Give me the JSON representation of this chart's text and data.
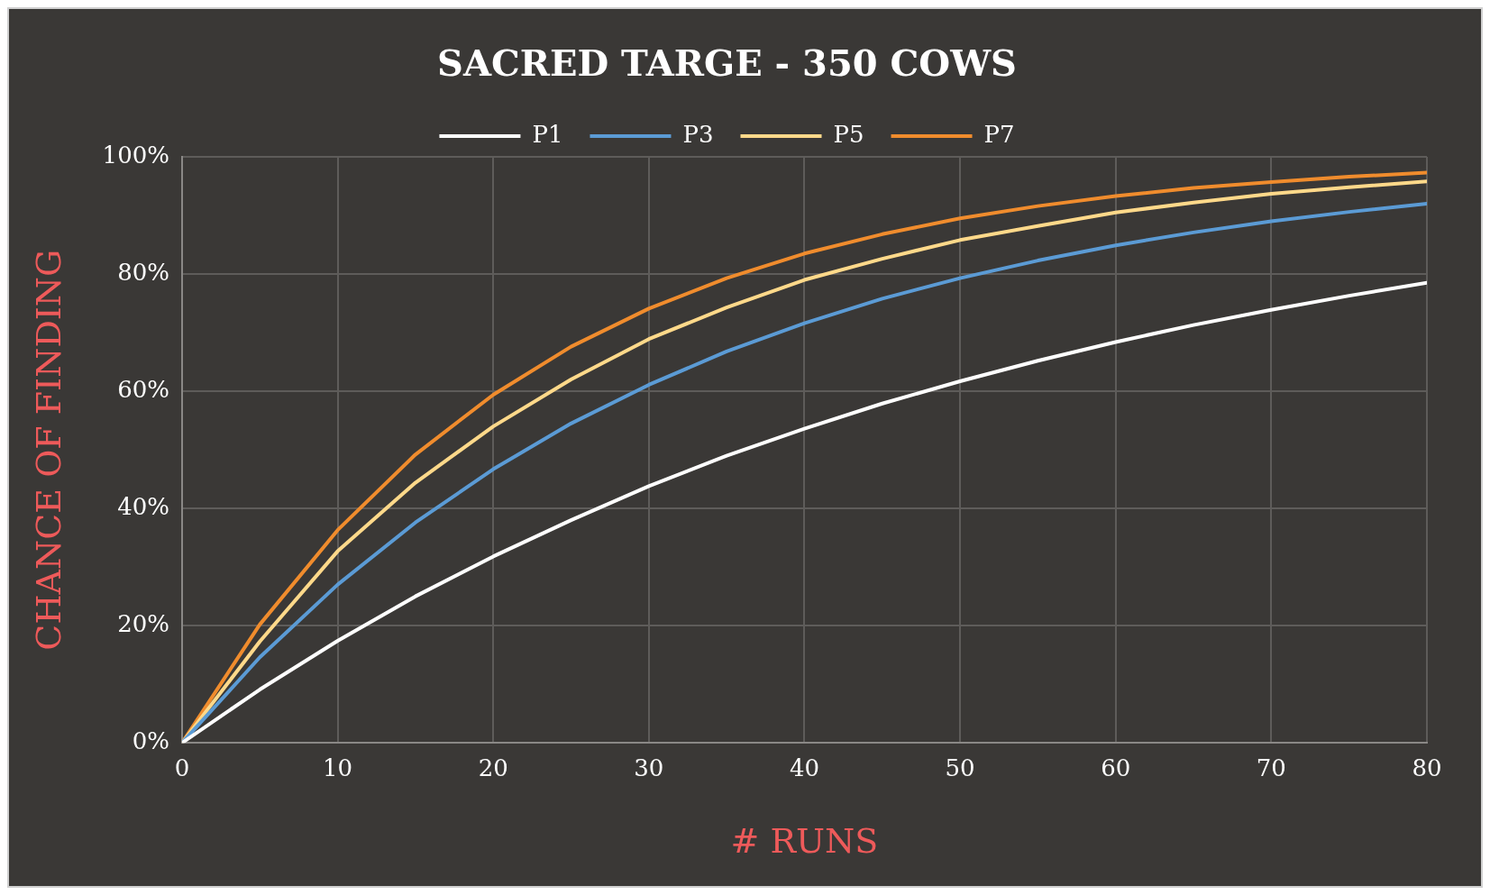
{
  "chart_data": {
    "type": "line",
    "title": "SACRED TARGE - 350 COWS",
    "xlabel": "# RUNS",
    "ylabel": "CHANCE OF FINDING",
    "x": [
      0,
      5,
      10,
      15,
      20,
      25,
      30,
      35,
      40,
      45,
      50,
      55,
      60,
      65,
      70,
      75,
      80
    ],
    "series": [
      {
        "name": "P1",
        "color": "#ffffff",
        "values": [
          0,
          9.1,
          17.4,
          25,
          31.8,
          38,
          43.8,
          49,
          53.6,
          57.9,
          61.7,
          65.2,
          68.4,
          71.3,
          73.9,
          76.3,
          78.5
        ]
      },
      {
        "name": "P3",
        "color": "#5b9bd5",
        "values": [
          0,
          14.6,
          27,
          37.6,
          46.7,
          54.5,
          61.1,
          66.8,
          71.6,
          75.8,
          79.3,
          82.3,
          84.9,
          87.1,
          89,
          90.6,
          92
        ]
      },
      {
        "name": "P5",
        "color": "#ffd98a",
        "values": [
          0,
          17.3,
          32.7,
          44.4,
          54,
          62,
          68.9,
          74.3,
          79,
          82.6,
          85.8,
          88.2,
          90.5,
          92.2,
          93.7,
          94.8,
          95.8
        ]
      },
      {
        "name": "P7",
        "color": "#f08c2d",
        "values": [
          0,
          20.2,
          36.3,
          49.2,
          59.4,
          67.6,
          74.1,
          79.3,
          83.5,
          86.8,
          89.5,
          91.6,
          93.3,
          94.7,
          95.7,
          96.6,
          97.3
        ]
      }
    ],
    "xlim": [
      0,
      80
    ],
    "xticks": [
      0,
      10,
      20,
      30,
      40,
      50,
      60,
      70,
      80
    ],
    "ylim": [
      0,
      100
    ],
    "yticks": [
      {
        "value": 0,
        "label": "0%"
      },
      {
        "value": 20,
        "label": "20%"
      },
      {
        "value": 40,
        "label": "40%"
      },
      {
        "value": 60,
        "label": "60%"
      },
      {
        "value": 80,
        "label": "80%"
      },
      {
        "value": 100,
        "label": "100%"
      }
    ],
    "grid": true,
    "legend": "top",
    "marker": "none",
    "line_style": "solid"
  }
}
